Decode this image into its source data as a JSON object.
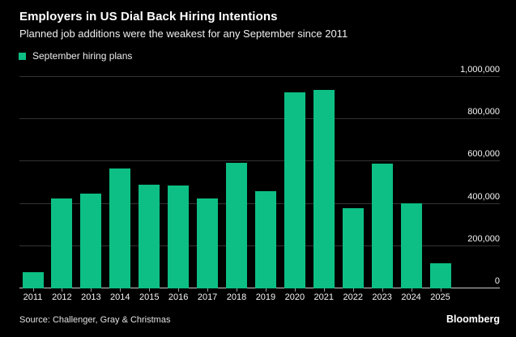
{
  "header": {
    "title": "Employers in US Dial Back Hiring Intentions",
    "subtitle": "Planned job additions were the weakest for any September since 2011"
  },
  "legend": {
    "label": "September hiring plans"
  },
  "footer": {
    "source": "Source: Challenger, Gray & Christmas",
    "brand": "Bloomberg"
  },
  "colors": {
    "background": "#000000",
    "bar": "#0dbf84",
    "grid": "#333333",
    "zero_axis": "#c9c9c9",
    "tick": "#9a9a9a",
    "text": "#ffffff"
  },
  "chart_data": {
    "type": "bar",
    "title": "Employers in US Dial Back Hiring Intentions",
    "subtitle": "Planned job additions were the weakest for any September since 2011",
    "series_name": "September hiring plans",
    "categories": [
      "2011",
      "2012",
      "2013",
      "2014",
      "2015",
      "2016",
      "2017",
      "2018",
      "2019",
      "2020",
      "2021",
      "2022",
      "2023",
      "2024",
      "2025"
    ],
    "values": [
      77000,
      426000,
      447000,
      566000,
      492000,
      485000,
      425000,
      595000,
      458000,
      928000,
      940000,
      380000,
      589000,
      404000,
      118000
    ],
    "xlabel": "",
    "ylabel": "",
    "ylim": [
      0,
      1000000
    ],
    "yticks": [
      0,
      200000,
      400000,
      600000,
      800000,
      1000000
    ],
    "ytick_labels": [
      "0",
      "200,000",
      "400,000",
      "600,000",
      "800,000",
      "1,000,000"
    ],
    "grid": "horizontal",
    "legend_position": "top-left",
    "value_axis_side": "right"
  }
}
